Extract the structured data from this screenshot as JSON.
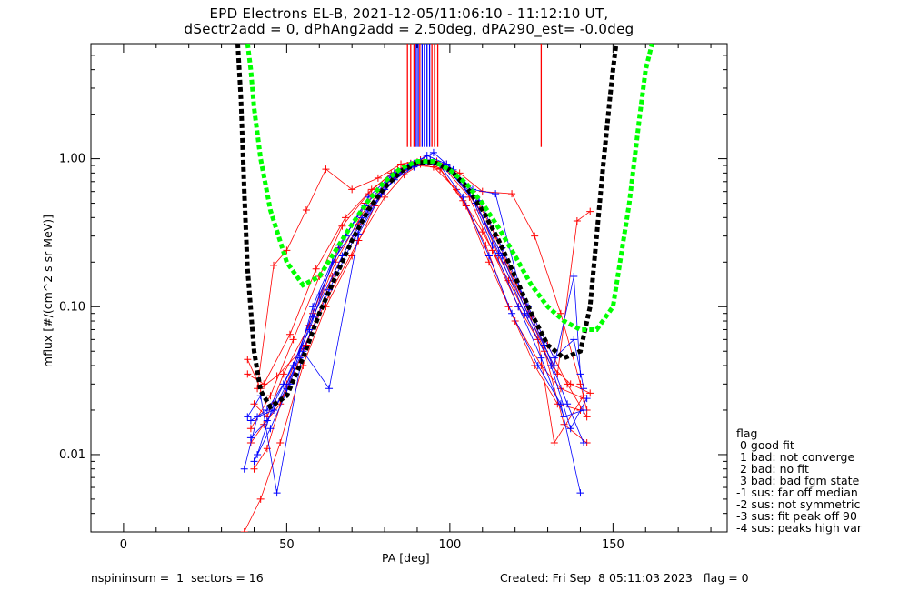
{
  "header": {
    "title_line1": "EPD Electrons EL-B, 2021-12-05/11:06:10 - 11:12:10 UT,",
    "title_line2": "dSectr2add = 0, dPhAng2add = 2.50deg, dPA290_est=  -0.0deg"
  },
  "legend": {
    "title": "flag",
    "items": [
      " 0 good fit",
      " 1 bad: not converge",
      " 2 bad: no fit",
      " 3 bad: bad fgm state",
      "-1 sus: far off median",
      "-2 sus: not symmetric",
      "-3 sus: fit peak off 90",
      "-4 sus: peaks high var"
    ]
  },
  "footer": {
    "left": "nspininsum =  1  sectors = 16",
    "right": "Created: Fri Sep  8 05:11:03 2023   flag = 0"
  },
  "colors": {
    "red": "#ff0000",
    "blue": "#0000ff",
    "black": "#000000",
    "green": "#00ff00"
  },
  "chart_data": {
    "type": "line",
    "title": "EPD Electrons EL-B, 2021-12-05/11:06:10 - 11:12:10 UT,",
    "subtitle": "dSectr2add = 0, dPhAng2add = 2.50deg, dPA290_est=  -0.0deg",
    "xlabel": "PA [deg]",
    "ylabel": "mflux [#/(cm^2 s sr MeV)]",
    "xlim": [
      -10,
      185
    ],
    "ylim": [
      0.003,
      6
    ],
    "yscale": "log",
    "xticks": [
      0,
      50,
      100,
      150
    ],
    "xtick_labels": [
      "0",
      "50",
      "100",
      "150"
    ],
    "yticks": [
      0.01,
      0.1,
      1.0
    ],
    "ytick_labels": [
      "0.01",
      "0.10",
      "1.00"
    ],
    "series": [
      {
        "color": "red",
        "marker": "+",
        "x": [
          38,
          42,
          47,
          55,
          63,
          72,
          80,
          86,
          91,
          97,
          105,
          112,
          120,
          128,
          134,
          141
        ],
        "y": [
          0.044,
          0.028,
          0.034,
          0.052,
          0.12,
          0.28,
          0.55,
          0.78,
          0.92,
          0.85,
          0.48,
          0.2,
          0.08,
          0.04,
          0.028,
          0.024
        ]
      },
      {
        "color": "red",
        "marker": "+",
        "x": [
          39,
          43,
          48,
          56,
          64,
          72,
          80,
          86,
          92,
          98,
          106,
          113,
          121,
          129,
          135,
          142
        ],
        "y": [
          0.012,
          0.016,
          0.022,
          0.055,
          0.16,
          0.36,
          0.62,
          0.86,
          0.95,
          0.88,
          0.55,
          0.24,
          0.1,
          0.05,
          0.016,
          0.012
        ]
      },
      {
        "color": "red",
        "marker": "+",
        "x": [
          40,
          44,
          49,
          57,
          65,
          73,
          81,
          87,
          92,
          99,
          107,
          114,
          122,
          130,
          136,
          142
        ],
        "y": [
          0.022,
          0.018,
          0.035,
          0.075,
          0.2,
          0.42,
          0.7,
          0.9,
          0.98,
          0.92,
          0.6,
          0.3,
          0.12,
          0.055,
          0.03,
          0.018
        ]
      },
      {
        "color": "red",
        "marker": "+",
        "x": [
          41,
          46,
          50,
          56,
          62,
          70,
          78,
          85,
          91,
          97,
          104,
          111,
          118,
          126,
          133,
          140
        ],
        "y": [
          0.028,
          0.19,
          0.24,
          0.45,
          0.85,
          0.62,
          0.74,
          0.92,
          0.98,
          0.86,
          0.52,
          0.26,
          0.1,
          0.04,
          0.022,
          0.02
        ]
      },
      {
        "color": "red",
        "marker": "+",
        "x": [
          37,
          42,
          48,
          55,
          62,
          70,
          77,
          83,
          89,
          95,
          102,
          110,
          118,
          127,
          132,
          141
        ],
        "y": [
          0.003,
          0.005,
          0.012,
          0.04,
          0.1,
          0.22,
          0.48,
          0.74,
          0.9,
          0.88,
          0.62,
          0.32,
          0.15,
          0.06,
          0.012,
          0.025
        ]
      },
      {
        "color": "red",
        "marker": "+",
        "x": [
          39,
          45,
          52,
          60,
          67,
          75,
          82,
          88,
          94,
          100,
          108,
          115,
          124,
          131,
          137,
          143
        ],
        "y": [
          0.015,
          0.025,
          0.06,
          0.16,
          0.35,
          0.58,
          0.8,
          0.93,
          0.97,
          0.85,
          0.5,
          0.22,
          0.09,
          0.04,
          0.03,
          0.026
        ]
      },
      {
        "color": "red",
        "marker": "+",
        "x": [
          40,
          44,
          50,
          58,
          66,
          74,
          83,
          89,
          95,
          101,
          109,
          117,
          125,
          133,
          139,
          143
        ],
        "y": [
          0.008,
          0.011,
          0.03,
          0.09,
          0.25,
          0.5,
          0.75,
          0.9,
          0.94,
          0.82,
          0.45,
          0.2,
          0.085,
          0.035,
          0.38,
          0.44
        ]
      },
      {
        "color": "red",
        "marker": "+",
        "x": [
          38,
          43,
          51,
          59,
          68,
          76,
          84,
          90,
          96,
          103,
          110,
          119,
          126,
          134,
          140,
          142
        ],
        "y": [
          0.035,
          0.03,
          0.065,
          0.18,
          0.4,
          0.62,
          0.84,
          0.95,
          0.96,
          0.8,
          0.6,
          0.58,
          0.3,
          0.09,
          0.03,
          0.02
        ]
      },
      {
        "color": "blue",
        "marker": "+",
        "x": [
          37,
          41,
          46,
          54,
          63,
          71,
          79,
          85,
          91,
          97,
          104,
          112,
          119,
          127,
          134,
          140
        ],
        "y": [
          0.008,
          0.018,
          0.02,
          0.045,
          0.13,
          0.3,
          0.58,
          0.82,
          0.96,
          0.9,
          0.55,
          0.22,
          0.09,
          0.04,
          0.022,
          0.0055
        ]
      },
      {
        "color": "blue",
        "marker": "+",
        "x": [
          38,
          42,
          47,
          55,
          63,
          72,
          80,
          87,
          93,
          98,
          106,
          113,
          121,
          128,
          135,
          141
        ],
        "y": [
          0.018,
          0.025,
          0.0055,
          0.05,
          0.028,
          0.31,
          0.62,
          0.86,
          0.98,
          0.9,
          0.6,
          0.26,
          0.1,
          0.045,
          0.018,
          0.02
        ]
      },
      {
        "color": "blue",
        "marker": "+",
        "x": [
          39,
          44,
          49,
          57,
          64,
          73,
          81,
          88,
          93,
          99,
          107,
          114,
          122,
          129,
          136,
          141
        ],
        "y": [
          0.017,
          0.02,
          0.03,
          0.07,
          0.2,
          0.4,
          0.7,
          0.9,
          1.05,
          0.92,
          0.62,
          0.58,
          0.12,
          0.055,
          0.022,
          0.012
        ]
      },
      {
        "color": "blue",
        "marker": "+",
        "x": [
          40,
          45,
          51,
          58,
          66,
          74,
          82,
          88,
          94,
          100,
          108,
          115,
          123,
          131,
          137,
          142
        ],
        "y": [
          0.009,
          0.015,
          0.03,
          0.1,
          0.26,
          0.48,
          0.76,
          0.92,
          0.98,
          0.86,
          0.5,
          0.23,
          0.09,
          0.04,
          0.015,
          0.024
        ]
      },
      {
        "color": "blue",
        "marker": "+",
        "x": [
          41,
          46,
          52,
          60,
          68,
          75,
          83,
          89,
          95,
          101,
          109,
          116,
          124,
          132,
          138,
          141
        ],
        "y": [
          0.01,
          0.022,
          0.04,
          0.12,
          0.3,
          0.55,
          0.8,
          0.93,
          1.1,
          0.84,
          0.52,
          0.25,
          0.1,
          0.045,
          0.06,
          0.028
        ]
      },
      {
        "color": "blue",
        "marker": "+",
        "x": [
          39,
          44,
          50,
          58,
          67,
          75,
          83,
          89,
          95,
          100,
          108,
          116,
          124,
          132,
          138,
          140
        ],
        "y": [
          0.013,
          0.017,
          0.028,
          0.085,
          0.22,
          0.45,
          0.72,
          0.88,
          0.95,
          0.82,
          0.5,
          0.22,
          0.088,
          0.04,
          0.16,
          0.035
        ]
      }
    ],
    "fit_curves": [
      {
        "color": "black",
        "style": "dotted",
        "x": [
          35,
          36,
          37,
          38,
          40,
          42,
          45,
          50,
          55,
          60,
          65,
          70,
          75,
          80,
          85,
          90,
          95,
          100,
          105,
          110,
          115,
          120,
          125,
          130,
          135,
          140,
          143,
          145,
          147,
          149,
          150,
          151
        ],
        "y": [
          6.0,
          2.5,
          0.6,
          0.18,
          0.05,
          0.027,
          0.021,
          0.025,
          0.045,
          0.09,
          0.16,
          0.28,
          0.45,
          0.64,
          0.82,
          0.94,
          0.95,
          0.84,
          0.65,
          0.45,
          0.28,
          0.16,
          0.09,
          0.055,
          0.045,
          0.05,
          0.1,
          0.3,
          0.9,
          2.5,
          4.0,
          6.0
        ]
      },
      {
        "color": "green",
        "style": "dotted",
        "x": [
          38,
          39,
          40,
          42,
          45,
          50,
          55,
          60,
          65,
          70,
          75,
          80,
          85,
          90,
          95,
          100,
          105,
          110,
          115,
          120,
          125,
          130,
          135,
          140,
          145,
          150,
          155,
          158,
          160,
          162
        ],
        "y": [
          6.0,
          4.0,
          2.2,
          1.0,
          0.45,
          0.2,
          0.14,
          0.16,
          0.24,
          0.36,
          0.52,
          0.7,
          0.86,
          0.96,
          0.96,
          0.84,
          0.68,
          0.5,
          0.34,
          0.22,
          0.14,
          0.1,
          0.08,
          0.07,
          0.07,
          0.1,
          0.5,
          1.8,
          4.0,
          6.0
        ]
      }
    ],
    "vertical_markers": [
      {
        "color": "red",
        "x": 87,
        "ymin": 1.2,
        "ymax": 6
      },
      {
        "color": "red",
        "x": 88,
        "ymin": 1.2,
        "ymax": 6
      },
      {
        "color": "red",
        "x": 89,
        "ymin": 1.2,
        "ymax": 6
      },
      {
        "color": "blue",
        "x": 89.7,
        "ymin": 1.2,
        "ymax": 6
      },
      {
        "color": "blue",
        "x": 90.3,
        "ymin": 1.2,
        "ymax": 6
      },
      {
        "color": "red",
        "x": 90.8,
        "ymin": 1.2,
        "ymax": 6
      },
      {
        "color": "blue",
        "x": 91.5,
        "ymin": 1.2,
        "ymax": 6
      },
      {
        "color": "blue",
        "x": 92.2,
        "ymin": 1.2,
        "ymax": 6
      },
      {
        "color": "blue",
        "x": 93,
        "ymin": 1.2,
        "ymax": 6
      },
      {
        "color": "blue",
        "x": 93.8,
        "ymin": 1.2,
        "ymax": 6
      },
      {
        "color": "red",
        "x": 94.5,
        "ymin": 1.2,
        "ymax": 6
      },
      {
        "color": "red",
        "x": 95.3,
        "ymin": 1.2,
        "ymax": 6
      },
      {
        "color": "red",
        "x": 96.3,
        "ymin": 1.2,
        "ymax": 6
      },
      {
        "color": "red",
        "x": 128,
        "ymin": 1.2,
        "ymax": 6
      }
    ]
  }
}
